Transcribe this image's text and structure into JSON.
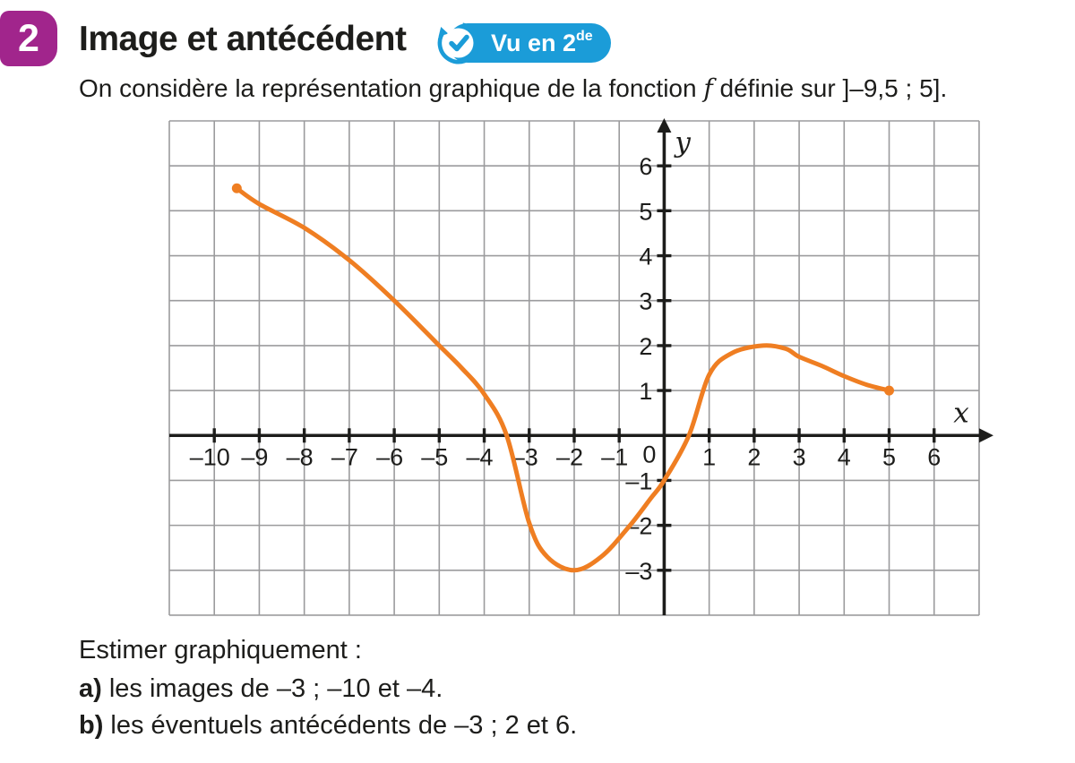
{
  "header": {
    "number": "2",
    "number_bg": "#a1258c",
    "title": "Image et antécédent",
    "vu_badge": {
      "bg": "#1b9cd8",
      "text": "Vu en 2",
      "sup": "de"
    }
  },
  "intro": {
    "part1": "On considère la représentation graphique de la fonction ",
    "func_name": "f",
    "part2": " définie sur ]–9,5 ; 5]."
  },
  "questions": {
    "lead": "Estimer graphiquement :",
    "items": [
      {
        "label": "a)",
        "text": " les images de –3 ; –10 et –4."
      },
      {
        "label": "b)",
        "text": " les éventuels antécédents de –3 ; 2 et 6."
      }
    ]
  },
  "chart_data": {
    "type": "line",
    "title": "",
    "xlabel": "x",
    "ylabel": "y",
    "x_range": [
      -11,
      7
    ],
    "y_range": [
      -4,
      7
    ],
    "grid": true,
    "grid_color": "#9b9b9d",
    "axis_color": "#1d1d1b",
    "curve_color": "#ef7e22",
    "x_tick_labels": [
      {
        "v": -10,
        "label": "–10"
      },
      {
        "v": -9,
        "label": "–9"
      },
      {
        "v": -8,
        "label": "–8"
      },
      {
        "v": -7,
        "label": "–7"
      },
      {
        "v": -6,
        "label": "–6"
      },
      {
        "v": -5,
        "label": "–5"
      },
      {
        "v": -4,
        "label": "–4"
      },
      {
        "v": -3,
        "label": "–3"
      },
      {
        "v": -2,
        "label": "–2"
      },
      {
        "v": -1,
        "label": "–1"
      },
      {
        "v": 1,
        "label": "1"
      },
      {
        "v": 2,
        "label": "2"
      },
      {
        "v": 3,
        "label": "3"
      },
      {
        "v": 4,
        "label": "4"
      },
      {
        "v": 5,
        "label": "5"
      },
      {
        "v": 6,
        "label": "6"
      }
    ],
    "origin_label": "0",
    "y_tick_labels": [
      {
        "v": 6,
        "label": "6"
      },
      {
        "v": 5,
        "label": "5"
      },
      {
        "v": 4,
        "label": "4"
      },
      {
        "v": 3,
        "label": "3"
      },
      {
        "v": 2,
        "label": "2"
      },
      {
        "v": 1,
        "label": "1"
      },
      {
        "v": -1,
        "label": "–1"
      },
      {
        "v": -2,
        "label": "–2"
      },
      {
        "v": -3,
        "label": "–3"
      }
    ],
    "curve_points": [
      [
        -9.5,
        5.5
      ],
      [
        -9,
        5.15
      ],
      [
        -8,
        4.62
      ],
      [
        -7,
        3.9
      ],
      [
        -6,
        3.0
      ],
      [
        -5,
        2.0
      ],
      [
        -4.5,
        1.5
      ],
      [
        -4,
        0.92
      ],
      [
        -3.5,
        0
      ],
      [
        -3,
        -1.95
      ],
      [
        -2.6,
        -2.7
      ],
      [
        -2,
        -3
      ],
      [
        -1.4,
        -2.7
      ],
      [
        -0.8,
        -2.05
      ],
      [
        -0.3,
        -1.4
      ],
      [
        0,
        -1
      ],
      [
        0.55,
        0
      ],
      [
        1,
        1.35
      ],
      [
        1.5,
        1.83
      ],
      [
        2.2,
        2.0
      ],
      [
        2.7,
        1.93
      ],
      [
        3,
        1.75
      ],
      [
        3.5,
        1.55
      ],
      [
        4,
        1.32
      ],
      [
        4.5,
        1.13
      ],
      [
        5,
        1.0
      ]
    ],
    "endpoint_dots": [
      [
        -9.5,
        5.5
      ],
      [
        5,
        1.0
      ]
    ]
  }
}
